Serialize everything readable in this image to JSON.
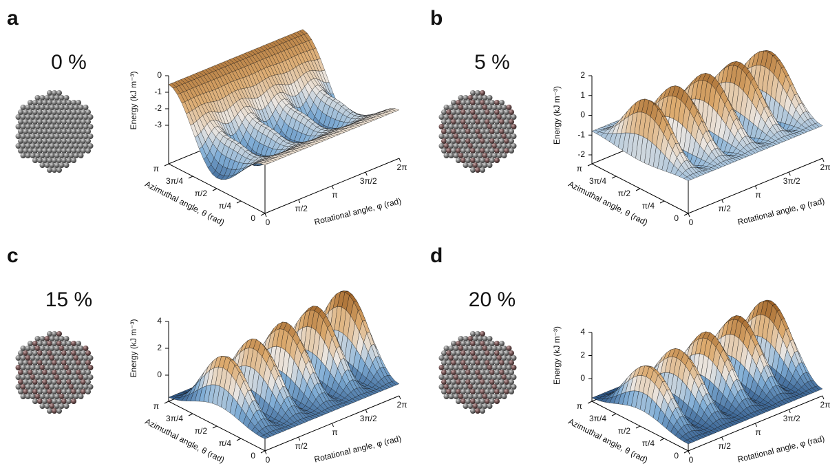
{
  "panels": [
    {
      "label": "a",
      "strain": "0 %",
      "z_axis_label": "Energy (kJ m⁻³)",
      "z_ticks": [
        "0",
        "-1",
        "-2",
        "-3"
      ],
      "theta_axis_label": "Azimuthal angle, θ (rad)",
      "theta_ticks": [
        "π",
        "3π/4",
        "π/2",
        "π/4",
        "0"
      ],
      "phi_axis_label": "Rotational angle, φ (rad)",
      "phi_ticks": [
        "0",
        "π/2",
        "π",
        "3π/2",
        "2π"
      ]
    },
    {
      "label": "b",
      "strain": "5 %",
      "z_axis_label": "Energy (kJ m⁻³)",
      "z_ticks": [
        "2",
        "1",
        "0",
        "-1",
        "-2"
      ],
      "theta_axis_label": "Azimuthal angle, θ (rad)",
      "theta_ticks": [
        "π",
        "3π/4",
        "π/2",
        "π/4",
        "0"
      ],
      "phi_axis_label": "Rotational angle, φ (rad)",
      "phi_ticks": [
        "0",
        "π/2",
        "π",
        "3π/2",
        "2π"
      ]
    },
    {
      "label": "c",
      "strain": "15 %",
      "z_axis_label": "Energy (kJ m⁻³)",
      "z_ticks": [
        "4",
        "2",
        "0"
      ],
      "theta_axis_label": "Azimuthal angle, θ (rad)",
      "theta_ticks": [
        "π",
        "3π/4",
        "π/2",
        "π/4",
        "0"
      ],
      "phi_axis_label": "Rotational angle, φ (rad)",
      "phi_ticks": [
        "0",
        "π/2",
        "π",
        "3π/2",
        "2π"
      ]
    },
    {
      "label": "d",
      "strain": "20 %",
      "z_axis_label": "Energy (kJ m⁻³)",
      "z_ticks": [
        "4",
        "2",
        "0"
      ],
      "theta_axis_label": "Azimuthal angle, θ (rad)",
      "theta_ticks": [
        "π",
        "3π/4",
        "π/2",
        "π/4",
        "0"
      ],
      "phi_axis_label": "Rotational angle, φ (rad)",
      "phi_ticks": [
        "0",
        "π/2",
        "π",
        "3π/2",
        "2π"
      ]
    }
  ]
}
